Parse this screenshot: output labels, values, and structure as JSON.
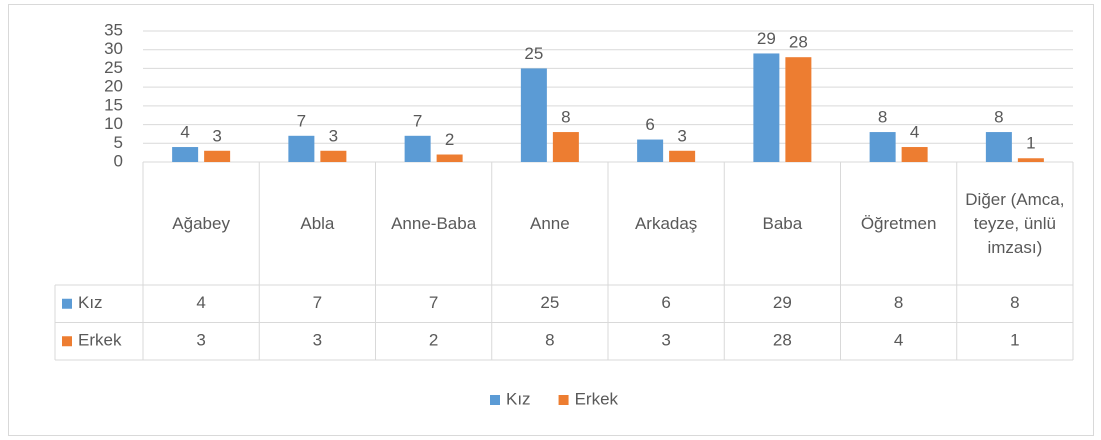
{
  "chart_data": {
    "type": "bar",
    "categories": [
      "Ağabey",
      "Abla",
      "Anne-Baba",
      "Anne",
      "Arkadaş",
      "Baba",
      "Öğretmen",
      "Diğer (Amca, teyze, ünlü imzası)"
    ],
    "series": [
      {
        "name": "Kız",
        "color": "#5b9bd5",
        "values": [
          4,
          7,
          7,
          25,
          6,
          29,
          8,
          8
        ]
      },
      {
        "name": "Erkek",
        "color": "#ed7d31",
        "values": [
          3,
          3,
          2,
          8,
          3,
          28,
          4,
          1
        ]
      }
    ],
    "ylim": [
      0,
      35
    ],
    "yticks": [
      0,
      5,
      10,
      15,
      20,
      25,
      30,
      35
    ],
    "grid": true,
    "data_labels": true,
    "data_table": true,
    "legend": "bottom"
  }
}
